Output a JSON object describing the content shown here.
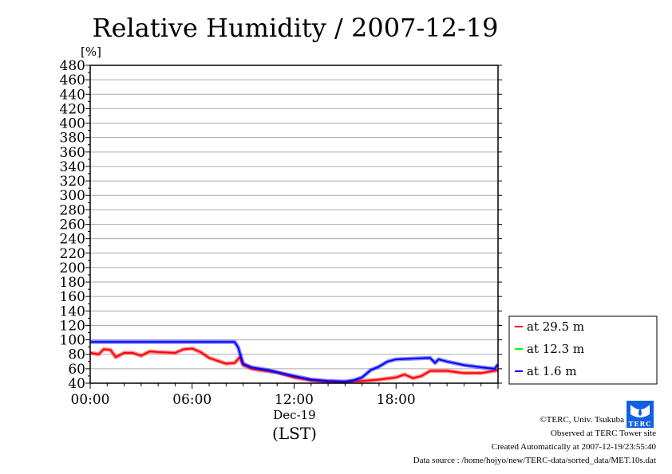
{
  "chart_data": {
    "type": "line",
    "title": "Relative Humidity / 2007-12-19",
    "ylabel": "[%]",
    "xlabel": "(LST)",
    "date_label": "Dec-19",
    "xlim": [
      0,
      24
    ],
    "ylim": [
      40,
      480
    ],
    "yticks": [
      40,
      60,
      80,
      100,
      120,
      140,
      160,
      180,
      200,
      220,
      240,
      260,
      280,
      300,
      320,
      340,
      360,
      380,
      400,
      420,
      440,
      460,
      480
    ],
    "xticks": [
      {
        "v": 0,
        "label": "00:00"
      },
      {
        "v": 6,
        "label": "06:00"
      },
      {
        "v": 12,
        "label": "12:00"
      },
      {
        "v": 18,
        "label": "18:00"
      }
    ],
    "grid": true,
    "legend_position": "right",
    "series": [
      {
        "name": "at 29.5 m",
        "color": "#ff0000",
        "x": [
          0,
          0.5,
          0.8,
          1.2,
          1.5,
          2,
          2.5,
          3,
          3.5,
          4,
          5,
          5.5,
          6,
          6.5,
          7,
          7.5,
          8,
          8.5,
          8.8,
          9,
          9.5,
          10,
          11,
          12,
          13,
          14,
          15,
          16,
          17,
          18,
          18.5,
          19,
          19.5,
          20,
          21,
          22,
          23,
          24
        ],
        "y": [
          82,
          80,
          87,
          86,
          76,
          82,
          82,
          78,
          84,
          83,
          82,
          87,
          88,
          83,
          75,
          71,
          67,
          68,
          76,
          65,
          60,
          58,
          55,
          48,
          44,
          42,
          42,
          43,
          45,
          48,
          52,
          47,
          50,
          57,
          57,
          54,
          54,
          58
        ]
      },
      {
        "name": "at 12.3 m",
        "color": "#00ff00",
        "x": [],
        "y": []
      },
      {
        "name": "at 1.6 m",
        "color": "#0000ff",
        "x": [
          0,
          2,
          4,
          6,
          8,
          8.5,
          8.7,
          9,
          9.5,
          10,
          10.5,
          11,
          12,
          13,
          14,
          15,
          15.5,
          16,
          16.5,
          17,
          17.5,
          18,
          19,
          20,
          20.3,
          20.5,
          21,
          22,
          23,
          23.8,
          24
        ],
        "y": [
          97,
          97,
          97,
          97,
          97,
          97,
          90,
          67,
          62,
          60,
          58,
          55,
          50,
          45,
          43,
          42,
          44,
          48,
          58,
          63,
          70,
          73,
          74,
          75,
          68,
          73,
          70,
          65,
          62,
          60,
          66
        ]
      }
    ]
  },
  "footer": {
    "copyright": "©TERC, Univ. Tsukuba",
    "observed": "Observed at TERC Tower site",
    "created": "Created Automatically at 2007-12-19/23:55:40",
    "source": "Data source : /home/hojyo/new/TERC-data/sorted_data/MET.10s.dat",
    "logo_text": "TERC"
  }
}
